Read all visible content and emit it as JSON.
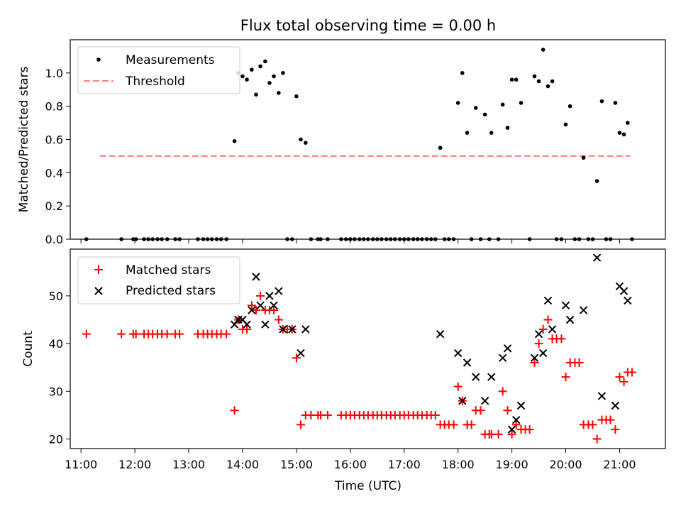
{
  "chart_data": [
    {
      "type": "scatter",
      "title": "Flux total observing time = 0.00 h",
      "xlabel": "",
      "ylabel": "Matched/Predicted stars",
      "xlim": [
        10.8,
        21.85
      ],
      "ylim": [
        0.0,
        1.2
      ],
      "yticks": [
        0.0,
        0.2,
        0.4,
        0.6,
        0.8,
        1.0
      ],
      "yticklabels": [
        "0.0",
        "0.2",
        "0.4",
        "0.6",
        "0.8",
        "1.0"
      ],
      "legend": {
        "location": "top-left",
        "entries": [
          "Measurements",
          "Threshold"
        ]
      },
      "threshold": {
        "name": "Threshold",
        "y": 0.5,
        "x_range": [
          11.35,
          21.2
        ],
        "color": "#ff7f7f"
      },
      "series": [
        {
          "name": "Measurements",
          "marker": "dot",
          "color": "#000000",
          "points": [
            [
              11.1,
              0.0
            ],
            [
              11.75,
              0.0
            ],
            [
              11.97,
              0.0
            ],
            [
              12.02,
              0.0
            ],
            [
              12.17,
              0.0
            ],
            [
              12.25,
              0.0
            ],
            [
              12.33,
              0.0
            ],
            [
              12.42,
              0.0
            ],
            [
              12.5,
              0.0
            ],
            [
              12.6,
              0.0
            ],
            [
              12.75,
              0.0
            ],
            [
              12.83,
              0.0
            ],
            [
              13.17,
              0.0
            ],
            [
              13.27,
              0.0
            ],
            [
              13.35,
              0.0
            ],
            [
              13.43,
              0.0
            ],
            [
              13.52,
              0.0
            ],
            [
              13.6,
              0.0
            ],
            [
              13.7,
              0.0
            ],
            [
              13.85,
              0.59
            ],
            [
              13.92,
              1.0
            ],
            [
              14.0,
              0.98
            ],
            [
              14.08,
              0.96
            ],
            [
              14.17,
              1.02
            ],
            [
              14.25,
              0.87
            ],
            [
              14.33,
              1.04
            ],
            [
              14.42,
              1.07
            ],
            [
              14.5,
              0.94
            ],
            [
              14.58,
              0.98
            ],
            [
              14.67,
              0.88
            ],
            [
              14.75,
              1.0
            ],
            [
              14.83,
              0.0
            ],
            [
              14.92,
              0.0
            ],
            [
              15.0,
              0.86
            ],
            [
              15.08,
              0.6
            ],
            [
              15.17,
              0.58
            ],
            [
              15.27,
              0.0
            ],
            [
              15.4,
              0.0
            ],
            [
              15.45,
              0.0
            ],
            [
              15.58,
              0.0
            ],
            [
              15.83,
              0.0
            ],
            [
              15.92,
              0.0
            ],
            [
              16.0,
              0.0
            ],
            [
              16.08,
              0.0
            ],
            [
              16.17,
              0.0
            ],
            [
              16.25,
              0.0
            ],
            [
              16.33,
              0.0
            ],
            [
              16.42,
              0.0
            ],
            [
              16.5,
              0.0
            ],
            [
              16.58,
              0.0
            ],
            [
              16.67,
              0.0
            ],
            [
              16.75,
              0.0
            ],
            [
              16.83,
              0.0
            ],
            [
              16.92,
              0.0
            ],
            [
              17.0,
              0.0
            ],
            [
              17.08,
              0.0
            ],
            [
              17.17,
              0.0
            ],
            [
              17.25,
              0.0
            ],
            [
              17.33,
              0.0
            ],
            [
              17.42,
              0.0
            ],
            [
              17.5,
              0.0
            ],
            [
              17.58,
              0.0
            ],
            [
              17.67,
              0.55
            ],
            [
              17.75,
              0.0
            ],
            [
              17.83,
              0.0
            ],
            [
              17.92,
              0.0
            ],
            [
              18.0,
              0.82
            ],
            [
              18.08,
              1.0
            ],
            [
              18.17,
              0.64
            ],
            [
              18.25,
              0.0
            ],
            [
              18.33,
              0.79
            ],
            [
              18.42,
              0.0
            ],
            [
              18.5,
              0.75
            ],
            [
              18.58,
              0.0
            ],
            [
              18.62,
              0.64
            ],
            [
              18.75,
              0.0
            ],
            [
              18.83,
              0.81
            ],
            [
              18.92,
              0.67
            ],
            [
              19.0,
              0.96
            ],
            [
              19.08,
              0.96
            ],
            [
              19.17,
              0.82
            ],
            [
              19.33,
              0.0
            ],
            [
              19.42,
              0.98
            ],
            [
              19.5,
              0.95
            ],
            [
              19.58,
              1.14
            ],
            [
              19.67,
              0.92
            ],
            [
              19.75,
              0.95
            ],
            [
              19.83,
              0.0
            ],
            [
              19.92,
              0.0
            ],
            [
              20.0,
              0.69
            ],
            [
              20.08,
              0.8
            ],
            [
              20.17,
              0.0
            ],
            [
              20.25,
              0.0
            ],
            [
              20.33,
              0.49
            ],
            [
              20.42,
              0.0
            ],
            [
              20.5,
              0.0
            ],
            [
              20.58,
              0.35
            ],
            [
              20.67,
              0.83
            ],
            [
              20.75,
              0.0
            ],
            [
              20.83,
              0.0
            ],
            [
              20.92,
              0.82
            ],
            [
              21.0,
              0.64
            ],
            [
              21.08,
              0.63
            ],
            [
              21.15,
              0.7
            ],
            [
              21.23,
              0.0
            ]
          ]
        }
      ]
    },
    {
      "type": "scatter",
      "title": "",
      "xlabel": "Time (UTC)",
      "ylabel": "Count",
      "xlim": [
        10.8,
        21.85
      ],
      "ylim": [
        18.0,
        59.8
      ],
      "yticks": [
        20,
        30,
        40,
        50
      ],
      "yticklabels": [
        "20",
        "30",
        "40",
        "50"
      ],
      "xticks": [
        11,
        12,
        13,
        14,
        15,
        16,
        17,
        18,
        19,
        20,
        21
      ],
      "xticklabels": [
        "11:00",
        "12:00",
        "13:00",
        "14:00",
        "15:00",
        "16:00",
        "17:00",
        "18:00",
        "19:00",
        "20:00",
        "21:00"
      ],
      "legend": {
        "location": "top-left",
        "entries": [
          "Matched stars",
          "Predicted stars"
        ]
      },
      "series": [
        {
          "name": "Matched stars",
          "marker": "plus",
          "color": "#ff0000",
          "points": [
            [
              11.1,
              42
            ],
            [
              11.75,
              42
            ],
            [
              11.97,
              42
            ],
            [
              12.02,
              42
            ],
            [
              12.17,
              42
            ],
            [
              12.25,
              42
            ],
            [
              12.33,
              42
            ],
            [
              12.42,
              42
            ],
            [
              12.5,
              42
            ],
            [
              12.6,
              42
            ],
            [
              12.75,
              42
            ],
            [
              12.83,
              42
            ],
            [
              13.17,
              42
            ],
            [
              13.27,
              42
            ],
            [
              13.35,
              42
            ],
            [
              13.43,
              42
            ],
            [
              13.52,
              42
            ],
            [
              13.6,
              42
            ],
            [
              13.7,
              42
            ],
            [
              13.85,
              26
            ],
            [
              13.92,
              45
            ],
            [
              14.0,
              43
            ],
            [
              14.08,
              43
            ],
            [
              14.17,
              48
            ],
            [
              14.25,
              47
            ],
            [
              14.33,
              50
            ],
            [
              14.42,
              47
            ],
            [
              14.5,
              47
            ],
            [
              14.58,
              47
            ],
            [
              14.67,
              45
            ],
            [
              14.75,
              43
            ],
            [
              14.83,
              43
            ],
            [
              14.92,
              43
            ],
            [
              15.0,
              37
            ],
            [
              15.08,
              23
            ],
            [
              15.17,
              25
            ],
            [
              15.27,
              25
            ],
            [
              15.4,
              25
            ],
            [
              15.45,
              25
            ],
            [
              15.58,
              25
            ],
            [
              15.83,
              25
            ],
            [
              15.92,
              25
            ],
            [
              16.0,
              25
            ],
            [
              16.08,
              25
            ],
            [
              16.17,
              25
            ],
            [
              16.25,
              25
            ],
            [
              16.33,
              25
            ],
            [
              16.42,
              25
            ],
            [
              16.5,
              25
            ],
            [
              16.58,
              25
            ],
            [
              16.67,
              25
            ],
            [
              16.75,
              25
            ],
            [
              16.83,
              25
            ],
            [
              16.92,
              25
            ],
            [
              17.0,
              25
            ],
            [
              17.08,
              25
            ],
            [
              17.17,
              25
            ],
            [
              17.25,
              25
            ],
            [
              17.33,
              25
            ],
            [
              17.42,
              25
            ],
            [
              17.5,
              25
            ],
            [
              17.58,
              25
            ],
            [
              17.67,
              23
            ],
            [
              17.75,
              23
            ],
            [
              17.83,
              23
            ],
            [
              17.92,
              23
            ],
            [
              18.0,
              31
            ],
            [
              18.08,
              28
            ],
            [
              18.17,
              23
            ],
            [
              18.25,
              23
            ],
            [
              18.33,
              26
            ],
            [
              18.42,
              26
            ],
            [
              18.5,
              21
            ],
            [
              18.58,
              21
            ],
            [
              18.62,
              21
            ],
            [
              18.75,
              21
            ],
            [
              18.83,
              30
            ],
            [
              18.92,
              26
            ],
            [
              19.0,
              21
            ],
            [
              19.08,
              23
            ],
            [
              19.17,
              22
            ],
            [
              19.25,
              22
            ],
            [
              19.33,
              22
            ],
            [
              19.42,
              36
            ],
            [
              19.5,
              40
            ],
            [
              19.58,
              43
            ],
            [
              19.67,
              45
            ],
            [
              19.75,
              41
            ],
            [
              19.83,
              41
            ],
            [
              19.92,
              41
            ],
            [
              20.0,
              33
            ],
            [
              20.08,
              36
            ],
            [
              20.17,
              36
            ],
            [
              20.25,
              36
            ],
            [
              20.33,
              23
            ],
            [
              20.42,
              23
            ],
            [
              20.5,
              23
            ],
            [
              20.58,
              20
            ],
            [
              20.67,
              24
            ],
            [
              20.75,
              24
            ],
            [
              20.83,
              24
            ],
            [
              20.92,
              22
            ],
            [
              21.0,
              33
            ],
            [
              21.08,
              32
            ],
            [
              21.15,
              34
            ],
            [
              21.23,
              34
            ]
          ]
        },
        {
          "name": "Predicted stars",
          "marker": "x",
          "color": "#000000",
          "points": [
            [
              13.85,
              44
            ],
            [
              13.92,
              45
            ],
            [
              14.0,
              45
            ],
            [
              14.08,
              44
            ],
            [
              14.17,
              47
            ],
            [
              14.25,
              54
            ],
            [
              14.33,
              48
            ],
            [
              14.42,
              44
            ],
            [
              14.5,
              50
            ],
            [
              14.58,
              48
            ],
            [
              14.67,
              51
            ],
            [
              14.75,
              43
            ],
            [
              14.92,
              43
            ],
            [
              15.08,
              38
            ],
            [
              15.17,
              43
            ],
            [
              17.67,
              42
            ],
            [
              18.0,
              38
            ],
            [
              18.08,
              28
            ],
            [
              18.17,
              36
            ],
            [
              18.33,
              33
            ],
            [
              18.5,
              28
            ],
            [
              18.62,
              33
            ],
            [
              18.83,
              37
            ],
            [
              18.92,
              39
            ],
            [
              19.0,
              22
            ],
            [
              19.08,
              24
            ],
            [
              19.17,
              27
            ],
            [
              19.42,
              37
            ],
            [
              19.5,
              42
            ],
            [
              19.58,
              38
            ],
            [
              19.67,
              49
            ],
            [
              19.75,
              43
            ],
            [
              20.0,
              48
            ],
            [
              20.08,
              45
            ],
            [
              20.33,
              47
            ],
            [
              20.58,
              58
            ],
            [
              20.67,
              29
            ],
            [
              20.92,
              27
            ],
            [
              21.0,
              52
            ],
            [
              21.08,
              51
            ],
            [
              21.15,
              49
            ]
          ]
        }
      ]
    }
  ]
}
